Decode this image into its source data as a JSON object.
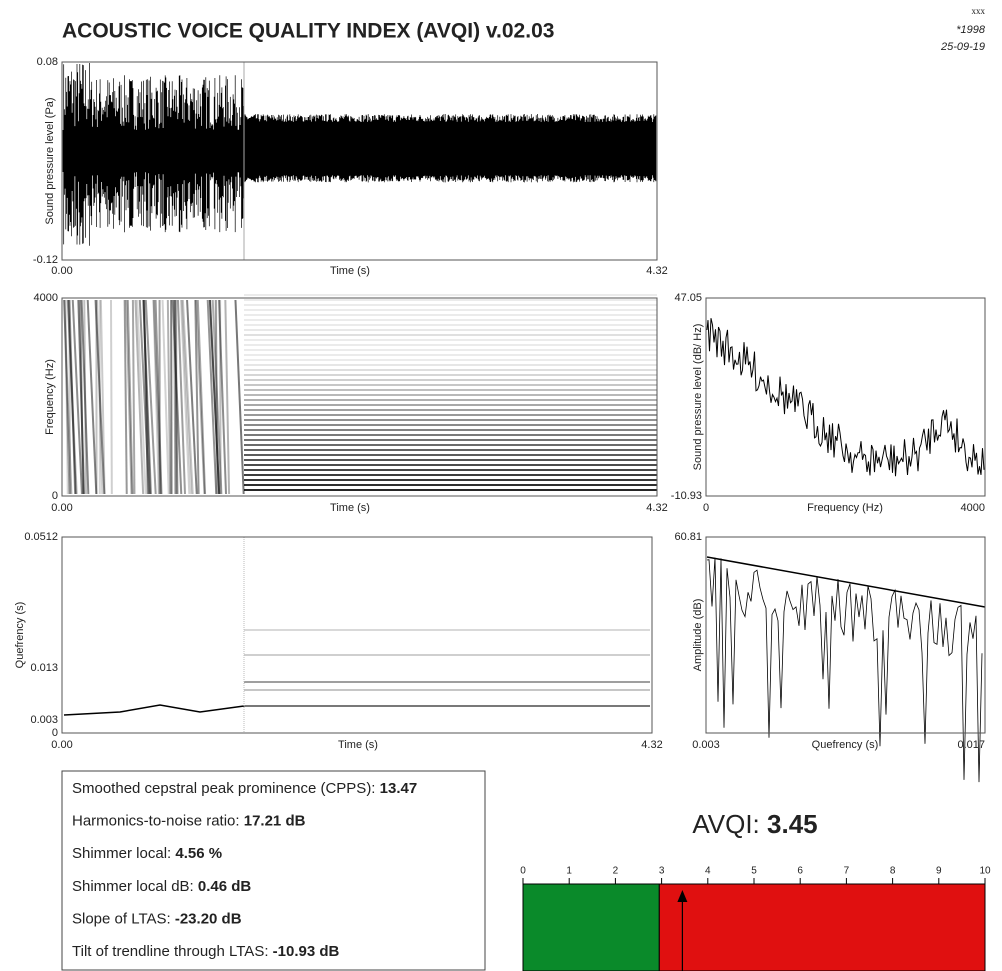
{
  "header": {
    "title": "ACOUSTIC VOICE QUALITY INDEX (AVQI) v.02.03",
    "info": [
      "xxx",
      "*1998",
      "25-09-19"
    ]
  },
  "waveform": {
    "y_label": "Sound pressure level (Pa)",
    "x_label": "Time (s)",
    "y_top": "0.08",
    "y_bottom": "-0.12",
    "x_left": "0.00",
    "x_right": "4.32"
  },
  "spectrogram": {
    "y_label": "Frequency (Hz)",
    "x_label": "Time (s)",
    "y_top": "4000",
    "y_bottom": "0",
    "x_left": "0.00",
    "x_right": "4.32"
  },
  "ltas": {
    "y_label": "Sound pressure level (dB/ Hz)",
    "x_label": "Frequency (Hz)",
    "y_top": "47.05",
    "y_bottom": "-10.93",
    "x_left": "0",
    "x_right": "4000"
  },
  "cepstrogram": {
    "y_label": "Quefrency (s)",
    "x_label": "Time (s)",
    "y_ticks": [
      "0.0512",
      "0.013",
      "0.003",
      "0"
    ],
    "x_left": "0.00",
    "x_right": "4.32"
  },
  "cepstrum": {
    "y_label": "Amplitude (dB)",
    "x_label": "Quefrency (s)",
    "y_top": "60.81",
    "x_left": "0.003",
    "x_right": "0.017"
  },
  "measures": [
    {
      "label": "Smoothed cepstral peak prominence (CPPS):",
      "value": "13.47"
    },
    {
      "label": "Harmonics-to-noise ratio:",
      "value": "17.21 dB"
    },
    {
      "label": "Shimmer local:",
      "value": "4.56 %"
    },
    {
      "label": "Shimmer local dB:",
      "value": "0.46 dB"
    },
    {
      "label": "Slope of LTAS:",
      "value": "-23.20 dB"
    },
    {
      "label": "Tilt of trendline through LTAS:",
      "value": "-10.93 dB"
    }
  ],
  "avqi": {
    "label": "AVQI:",
    "value": 3.45,
    "lim": [
      0,
      10
    ],
    "ticks": [
      0,
      1,
      2,
      3,
      4,
      5,
      6,
      7,
      8,
      9,
      10
    ],
    "green_until": 2.95,
    "green": "#0a8a2a",
    "red": "#e01010"
  }
}
